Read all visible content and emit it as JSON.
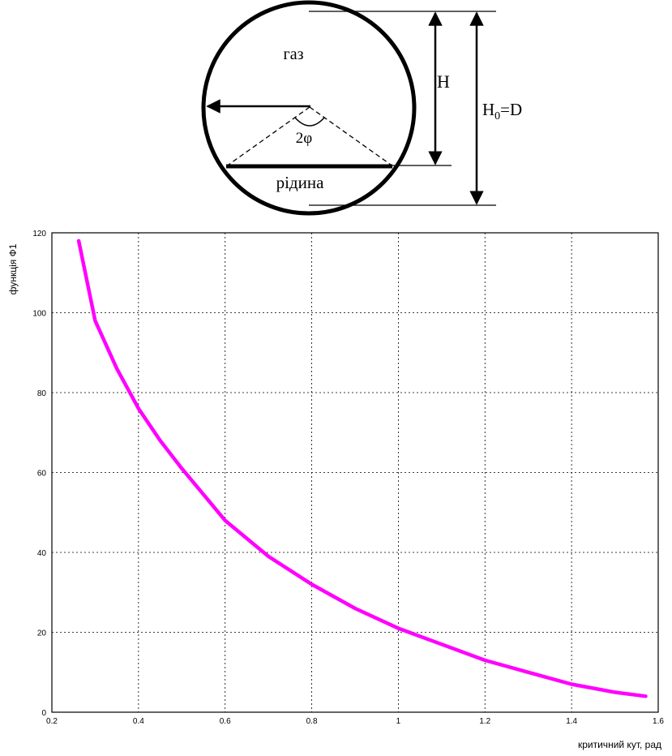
{
  "diagram": {
    "gas_label": "газ",
    "liquid_label": "рідина",
    "angle_label": "2φ",
    "h_label": "H",
    "h0_main": "H",
    "h0_sub": "0",
    "h0_rest": "=D"
  },
  "chart_data": {
    "type": "line",
    "title": "",
    "xlabel": "критичний кут, рад",
    "ylabel": "функція Ф1",
    "xlim": [
      0.2,
      1.6
    ],
    "ylim": [
      0,
      120
    ],
    "xticks": [
      "0.2",
      "0.4",
      "0.6",
      "0.8",
      "1",
      "1.2",
      "1.4",
      "1.6"
    ],
    "yticks": [
      "0",
      "20",
      "40",
      "60",
      "80",
      "100",
      "120"
    ],
    "grid": true,
    "series": [
      {
        "color": "#ff00ff",
        "x": [
          0.262,
          0.3,
          0.35,
          0.4,
          0.45,
          0.5,
          0.6,
          0.7,
          0.8,
          0.9,
          1.0,
          1.1,
          1.2,
          1.3,
          1.4,
          1.5,
          1.571
        ],
        "y": [
          118,
          98,
          86,
          76,
          68,
          61,
          48,
          39,
          32,
          26,
          21,
          17,
          13,
          10,
          7,
          5,
          4
        ]
      }
    ]
  }
}
